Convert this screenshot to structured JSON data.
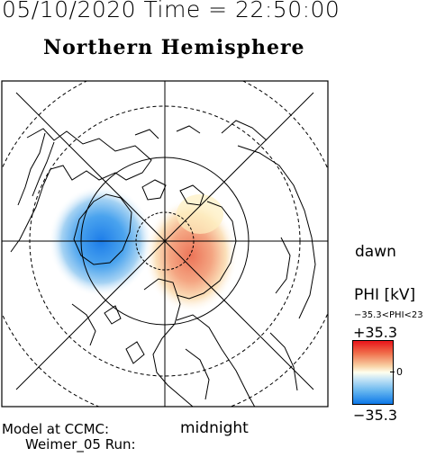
{
  "header": {
    "datetime": "05/10/2020 Time = 22:50:00",
    "hemisphere": "Northern Hemisphere"
  },
  "map": {
    "dawn_label": "dawn",
    "midnight_label": "midnight",
    "model_line1": "Model at CCMC:",
    "model_line2": "Weimer_05 Run:"
  },
  "colorbar": {
    "title": "PHI [kV]",
    "range_text": "−35.3<PHI<23",
    "max_label": "+35.3",
    "min_label": "−35.3",
    "zero_label": "0",
    "max_color": "#e8141a",
    "mid_color": "#ffffee",
    "min_color": "#0d78e8"
  }
}
